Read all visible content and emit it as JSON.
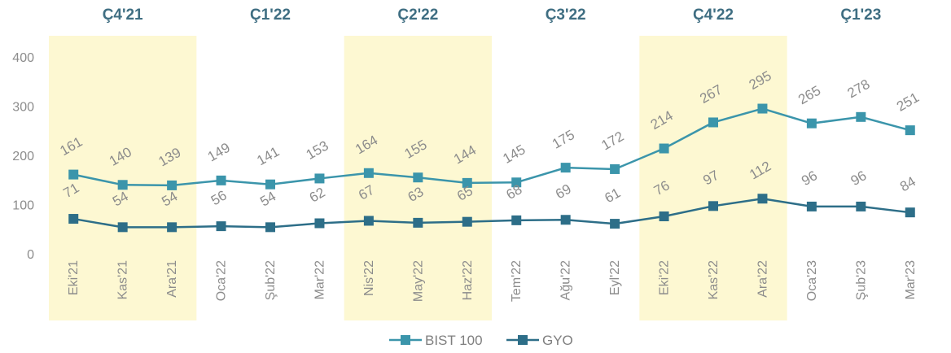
{
  "chart_data": {
    "type": "line",
    "categories": [
      "Eki'21",
      "Kas'21",
      "Ara'21",
      "Oca'22",
      "Şub'22",
      "Mar'22",
      "Nis'22",
      "May'22",
      "Haz'22",
      "Tem'22",
      "Ağu'22",
      "Eyl'22",
      "Eki'22",
      "Kas'22",
      "Ara'22",
      "Oca'23",
      "Şub'23",
      "Mar'23"
    ],
    "quarters": [
      {
        "label": "Ç4'21",
        "start": 0,
        "end": 2,
        "shaded": true
      },
      {
        "label": "Ç1'22",
        "start": 3,
        "end": 5,
        "shaded": false
      },
      {
        "label": "Ç2'22",
        "start": 6,
        "end": 8,
        "shaded": true
      },
      {
        "label": "Ç3'22",
        "start": 9,
        "end": 11,
        "shaded": false
      },
      {
        "label": "Ç4'22",
        "start": 12,
        "end": 14,
        "shaded": true
      },
      {
        "label": "Ç1'23",
        "start": 15,
        "end": 17,
        "shaded": false
      }
    ],
    "series": [
      {
        "name": "BIST 100",
        "color": "#3b95ab",
        "values": [
          161,
          140,
          139,
          149,
          141,
          153,
          164,
          155,
          144,
          145,
          175,
          172,
          214,
          267,
          295,
          265,
          278,
          251
        ]
      },
      {
        "name": "GYO",
        "color": "#2d6e88",
        "values": [
          71,
          54,
          54,
          56,
          54,
          62,
          67,
          63,
          65,
          68,
          69,
          61,
          76,
          97,
          112,
          96,
          96,
          84
        ]
      }
    ],
    "yticks": [
      "0",
      "100",
      "200",
      "300",
      "400"
    ],
    "ylim": [
      0,
      400
    ],
    "grid": false,
    "legend": "bottom-center",
    "shade_color": "#fdf8d2"
  }
}
